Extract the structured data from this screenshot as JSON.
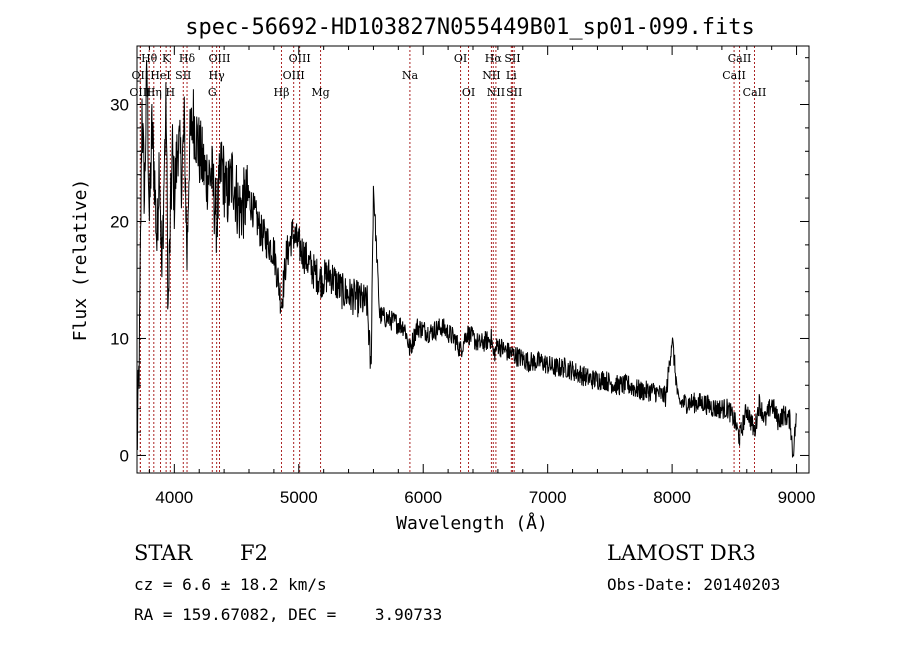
{
  "chart_data": {
    "type": "line",
    "title": "spec-56692-HD103827N055449B01_sp01-099.fits",
    "xlabel": "Wavelength (Å)",
    "ylabel": "Flux (relative)",
    "xlim": [
      3700,
      9100
    ],
    "ylim": [
      -1.5,
      35
    ],
    "x_ticks": [
      4000,
      5000,
      6000,
      7000,
      8000,
      9000
    ],
    "y_ticks": [
      0,
      10,
      20,
      30
    ],
    "grid": false,
    "series": [
      {
        "name": "spectrum",
        "x": [
          3700,
          3720,
          3740,
          3760,
          3780,
          3800,
          3820,
          3840,
          3860,
          3880,
          3900,
          3920,
          3935,
          3950,
          3968,
          3985,
          4000,
          4030,
          4060,
          4080,
          4102,
          4120,
          4150,
          4200,
          4250,
          4300,
          4340,
          4380,
          4420,
          4470,
          4520,
          4600,
          4700,
          4800,
          4861,
          4900,
          4950,
          5000,
          5100,
          5175,
          5250,
          5350,
          5450,
          5550,
          5580,
          5600,
          5650,
          5750,
          5850,
          5893,
          5950,
          6050,
          6150,
          6250,
          6300,
          6350,
          6450,
          6550,
          6563,
          6600,
          6650,
          6750,
          6850,
          6950,
          7050,
          7150,
          7250,
          7350,
          7450,
          7550,
          7650,
          7750,
          7850,
          7950,
          8000,
          8050,
          8150,
          8250,
          8350,
          8450,
          8500,
          8542,
          8600,
          8662,
          8700,
          8750,
          8800,
          8850,
          8900,
          8950,
          8970,
          9000
        ],
        "values": [
          0.5,
          9,
          30,
          22,
          33,
          20,
          28,
          24,
          18,
          26,
          15,
          25,
          30,
          12,
          20,
          26,
          22,
          27,
          24,
          28,
          17,
          26,
          29,
          26,
          24,
          24,
          20,
          25,
          22,
          24,
          21,
          22,
          19,
          17.5,
          13,
          17,
          19,
          18,
          16,
          15,
          15.5,
          14,
          13.5,
          13,
          7,
          23,
          12,
          11.5,
          11,
          9,
          11,
          10.5,
          11,
          10,
          9,
          10.5,
          9.5,
          10,
          8.5,
          9.5,
          9,
          8.5,
          8,
          8,
          7.5,
          7.5,
          7,
          6.5,
          6.5,
          6,
          6,
          5.5,
          5.5,
          5,
          10,
          4.5,
          4.5,
          4.5,
          4,
          4,
          3,
          1.5,
          4,
          2,
          4.5,
          3,
          4.5,
          3,
          3.5,
          3,
          0,
          3.5
        ]
      }
    ],
    "spectral_lines_top": [
      {
        "label": "Hθ",
        "x": 3798
      },
      {
        "label": "K",
        "x": 3934
      },
      {
        "label": "Hδ",
        "x": 4102
      },
      {
        "label": "OIII",
        "x": 4363
      },
      {
        "label": "OIII",
        "x": 5007
      },
      {
        "label": "OI",
        "x": 6300
      },
      {
        "label": "Hα",
        "x": 6563
      },
      {
        "label": "SII",
        "x": 6717
      },
      {
        "label": "CaII",
        "x": 8542
      }
    ],
    "spectral_lines_mid": [
      {
        "label": "OII",
        "x": 3727
      },
      {
        "label": "HeI",
        "x": 3889
      },
      {
        "label": "SII",
        "x": 4072
      },
      {
        "label": "Hγ",
        "x": 4340
      },
      {
        "label": "OIII",
        "x": 4959
      },
      {
        "label": "Na",
        "x": 5893
      },
      {
        "label": "NII",
        "x": 6548
      },
      {
        "label": "Li",
        "x": 6708
      },
      {
        "label": "CaII",
        "x": 8498
      }
    ],
    "spectral_lines_bottom": [
      {
        "label": "OIII",
        "x": 3727
      },
      {
        "label": "Hη",
        "x": 3835
      },
      {
        "label": "H",
        "x": 3968
      },
      {
        "label": "G",
        "x": 4305
      },
      {
        "label": "Hβ",
        "x": 4861
      },
      {
        "label": "Mg",
        "x": 5175
      },
      {
        "label": "OI",
        "x": 6364
      },
      {
        "label": "NII",
        "x": 6584
      },
      {
        "label": "SII",
        "x": 6731
      },
      {
        "label": "CaII",
        "x": 8662
      }
    ],
    "line_colors": {
      "spectrum": "#000000",
      "markers": "#aa2222"
    }
  },
  "info": {
    "class_label": "STAR",
    "subclass": "F2",
    "survey": "LAMOST DR3",
    "cz_line": "cz = 6.6 ± 18.2 km/s",
    "obs_date_line": "Obs-Date: 20140203",
    "coords_line": "RA = 159.67082, DEC =    3.90733"
  }
}
